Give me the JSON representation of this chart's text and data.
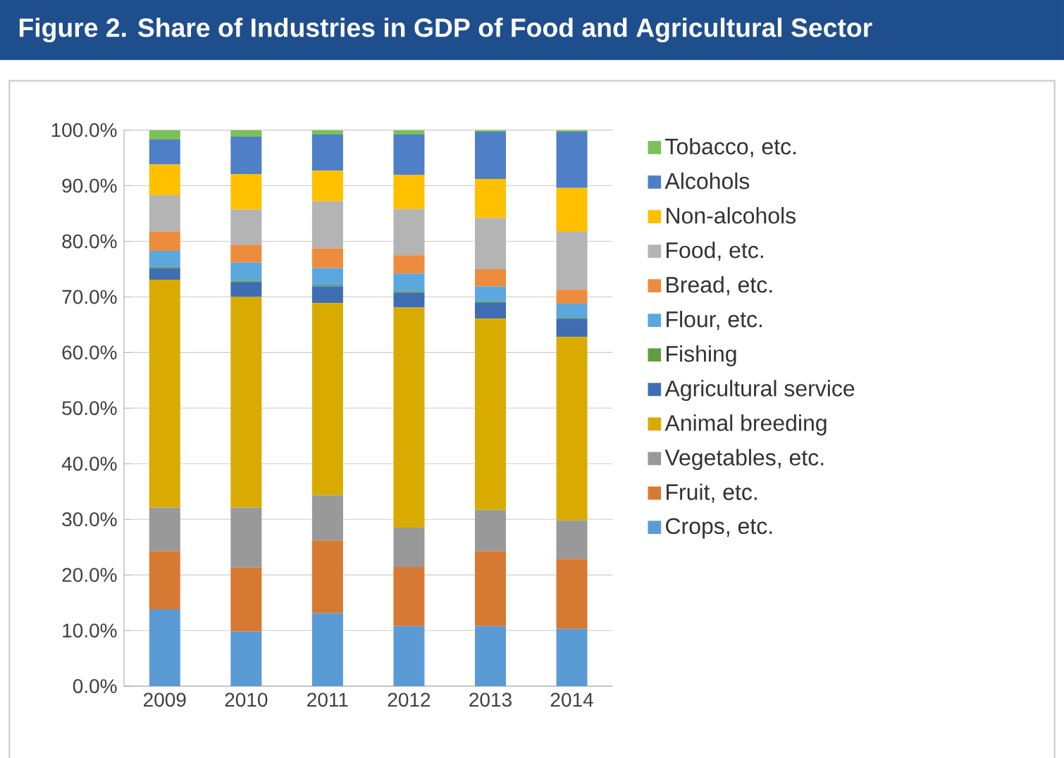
{
  "chart_data": {
    "type": "bar",
    "stacked": true,
    "title": "Figure 2. Share of Industries in GDP of Food and Agricultural Sector",
    "categories": [
      "2009",
      "2010",
      "2011",
      "2012",
      "2013",
      "2014"
    ],
    "series": [
      {
        "name": "Crops, etc.",
        "color": "#5b9bd5",
        "values": [
          13.8,
          9.8,
          13.1,
          10.8,
          10.8,
          10.3
        ]
      },
      {
        "name": "Fruit, etc.",
        "color": "#d67a33",
        "values": [
          10.5,
          11.5,
          13.1,
          10.6,
          13.5,
          12.6
        ]
      },
      {
        "name": "Vegetables, etc.",
        "color": "#999999",
        "values": [
          7.8,
          10.8,
          8.1,
          7.1,
          7.4,
          6.9
        ]
      },
      {
        "name": "Animal breeding",
        "color": "#d9ab00",
        "values": [
          41.0,
          37.9,
          34.6,
          39.6,
          34.4,
          33.0
        ]
      },
      {
        "name": "Agricultural service",
        "color": "#3f6db3",
        "values": [
          2.1,
          2.7,
          3.0,
          2.7,
          2.9,
          3.3
        ]
      },
      {
        "name": "Fishing",
        "color": "#5f9e3f",
        "values": [
          0.2,
          0.2,
          0.2,
          0.2,
          0.2,
          0.2
        ]
      },
      {
        "name": "Flour, etc.",
        "color": "#5ba7de",
        "values": [
          2.9,
          3.3,
          3.1,
          3.2,
          2.7,
          2.5
        ]
      },
      {
        "name": "Bread, etc.",
        "color": "#ed8c3c",
        "values": [
          3.4,
          3.2,
          3.5,
          3.3,
          3.1,
          2.5
        ]
      },
      {
        "name": "Food, etc.",
        "color": "#b4b4b4",
        "values": [
          6.6,
          6.3,
          8.5,
          8.3,
          9.2,
          10.4
        ]
      },
      {
        "name": "Non-alcohols",
        "color": "#ffc000",
        "values": [
          5.5,
          6.4,
          5.5,
          6.1,
          7.0,
          7.9
        ]
      },
      {
        "name": "Alcohols",
        "color": "#4e7fc7",
        "values": [
          4.5,
          6.7,
          6.5,
          7.3,
          8.5,
          10.1
        ]
      },
      {
        "name": "Tobacco, etc.",
        "color": "#7cc05a",
        "values": [
          1.7,
          1.2,
          0.8,
          0.8,
          0.3,
          0.3
        ]
      }
    ],
    "ylim": [
      0,
      100
    ],
    "yticks": [
      {
        "value": 0,
        "label": "0.0%"
      },
      {
        "value": 10,
        "label": "10.0%"
      },
      {
        "value": 20,
        "label": "20.0%"
      },
      {
        "value": 30,
        "label": "30.0%"
      },
      {
        "value": 40,
        "label": "40.0%"
      },
      {
        "value": 50,
        "label": "50.0%"
      },
      {
        "value": 60,
        "label": "60.0%"
      },
      {
        "value": 70,
        "label": "70.0%"
      },
      {
        "value": 80,
        "label": "80.0%"
      },
      {
        "value": 90,
        "label": "90.0%"
      },
      {
        "value": 100,
        "label": "100.0%"
      }
    ],
    "grid": "y",
    "legend": "right"
  }
}
